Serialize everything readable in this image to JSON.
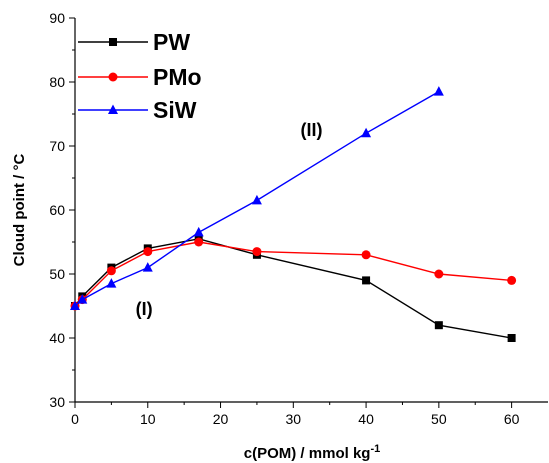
{
  "chart_data": {
    "type": "line",
    "xlabel": "c(POM) / mmol kg",
    "xlabel_sup": "-1",
    "ylabel": "Cloud point / °C",
    "xlim": [
      0,
      65
    ],
    "ylim": [
      30,
      90
    ],
    "x_ticks": [
      0,
      10,
      20,
      30,
      40,
      50,
      60
    ],
    "y_ticks": [
      30,
      40,
      50,
      60,
      70,
      80,
      90
    ],
    "x_tick_labels": [
      "0",
      "10",
      "20",
      "30",
      "40",
      "50",
      "60"
    ],
    "y_tick_labels": [
      "30",
      "40",
      "50",
      "60",
      "70",
      "80",
      "90"
    ],
    "grid": false,
    "legend_position": "top-left",
    "series": [
      {
        "name": "PW",
        "color": "#000000",
        "marker": "square",
        "x": [
          0,
          1,
          5,
          10,
          17,
          25,
          40,
          50,
          60
        ],
        "y": [
          45,
          46.5,
          51,
          54,
          55.5,
          53,
          49,
          42,
          40
        ]
      },
      {
        "name": "PMo",
        "color": "#ff0000",
        "marker": "circle",
        "x": [
          0,
          1,
          5,
          10,
          17,
          25,
          40,
          50,
          60
        ],
        "y": [
          45,
          46,
          50.5,
          53.5,
          55,
          53.5,
          53,
          50,
          49
        ]
      },
      {
        "name": "SiW",
        "color": "#0000ff",
        "marker": "triangle",
        "x": [
          0,
          1,
          5,
          10,
          17,
          25,
          40,
          50
        ],
        "y": [
          45,
          46,
          48.5,
          51,
          56.5,
          61.5,
          72,
          78.5
        ]
      }
    ],
    "annotations": [
      {
        "text": "(I)",
        "x": 9.5,
        "y": 44.5
      },
      {
        "text": "(II)",
        "x": 32.5,
        "y": 72.5
      }
    ]
  }
}
